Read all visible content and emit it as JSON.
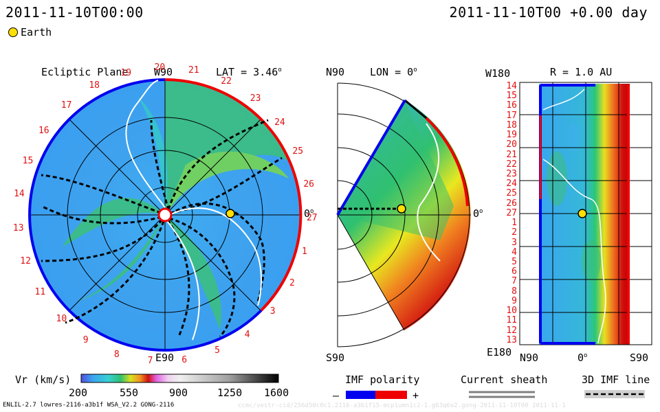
{
  "header": {
    "left_timestamp": "2011-11-10T00:00",
    "right_timestamp": "2011-11-10T00 +0.00 day",
    "legend_earth": "Earth"
  },
  "ecliptic_panel": {
    "title": "Ecliptic Plane",
    "lat_label": "LAT = 3.46",
    "lat_sup": "o",
    "top_label": "W90",
    "bottom_label": "E90",
    "right_label": "0",
    "right_sup": "o",
    "carrington_numbers": [
      "20",
      "21",
      "22",
      "23",
      "24",
      "25",
      "26",
      "27",
      "1",
      "2",
      "3",
      "4",
      "5",
      "6",
      "7",
      "8",
      "9",
      "10",
      "11",
      "12",
      "13",
      "14",
      "15",
      "16",
      "17",
      "18",
      "19"
    ]
  },
  "meridional_panel": {
    "top_label": "N90",
    "bottom_label": "S90",
    "lon_label": "LON = 0",
    "lon_sup": "o",
    "right_label": "0",
    "right_sup": "o"
  },
  "r_panel": {
    "title": "R = 1.0 AU",
    "top_left_label": "W180",
    "bottom_left_label": "E180",
    "x_ticks": [
      "N90",
      "0",
      "S90"
    ],
    "x_mid_sup": "o",
    "y_ticks": [
      "14",
      "15",
      "16",
      "17",
      "18",
      "19",
      "20",
      "21",
      "22",
      "23",
      "24",
      "25",
      "26",
      "27",
      "1",
      "2",
      "3",
      "4",
      "5",
      "6",
      "7",
      "8",
      "9",
      "10",
      "11",
      "12",
      "13"
    ]
  },
  "colorbar": {
    "label": "Vr (km/s)",
    "ticks": [
      "200",
      "550",
      "900",
      "1250",
      "1600"
    ]
  },
  "imf_polarity": {
    "label": "IMF polarity",
    "minus": "–",
    "plus": "+",
    "neg_color": "#0000ee",
    "pos_color": "#ee0000"
  },
  "current_sheath": {
    "label": "Current sheath"
  },
  "imf_line": {
    "label": "3D IMF line"
  },
  "footer": {
    "model_info": "ENLIL-2.7 lowres-2116-a3b1f WSA_V2.2 GONG-2116",
    "watermark": "ccmc/vestr-cid/256d50c0c1.2116-a3b1f15-mcp1umn1c2-1.g63q6o2.gong-2011-11-10T00    2011-11-1"
  },
  "colors": {
    "slow_wind": "#3aa6f0",
    "mid_wind": "#22c96a",
    "fast_wind": "#f0c020",
    "fastest_wind": "#d01010",
    "earth": "#ffe000"
  }
}
